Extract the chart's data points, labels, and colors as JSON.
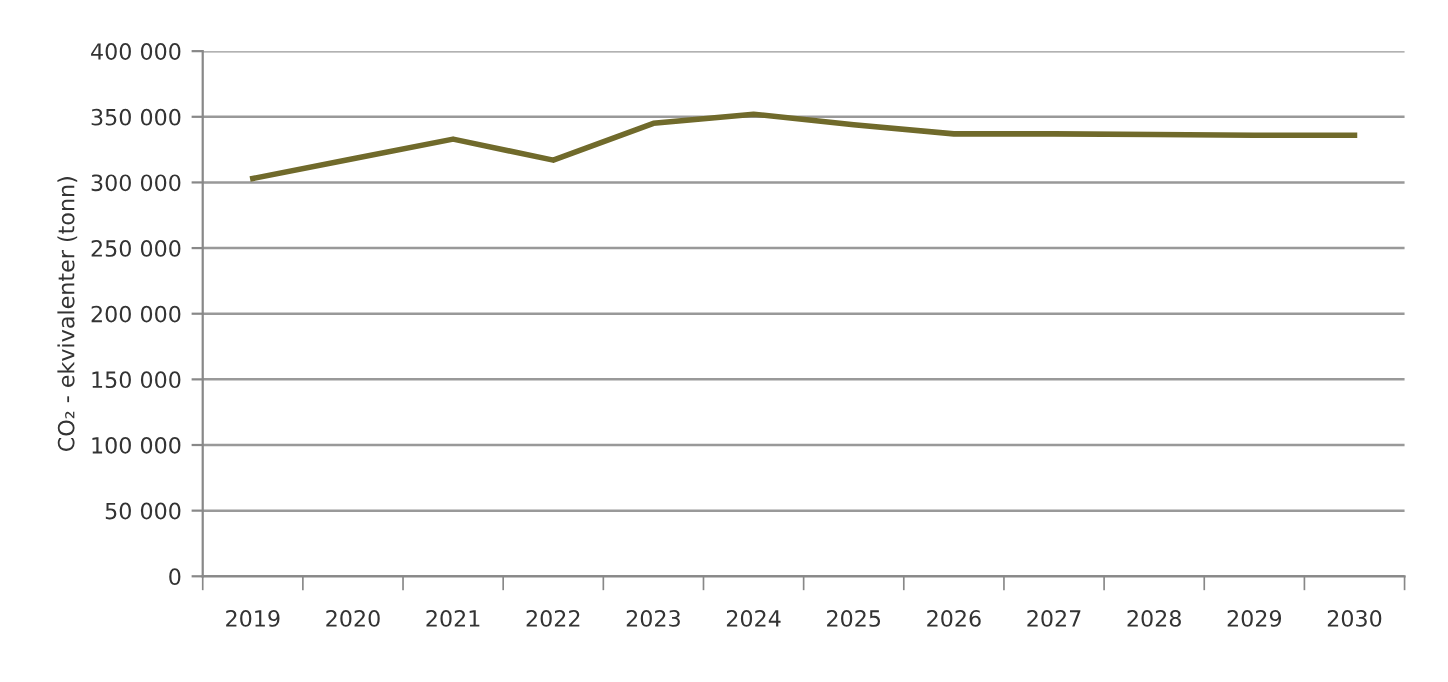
{
  "chart_data": {
    "type": "line",
    "ylabel": "CO₂ - ekvivalenter (tonn)",
    "categories": [
      "2019",
      "2020",
      "2021",
      "2022",
      "2023",
      "2024",
      "2025",
      "2026",
      "2027",
      "2028",
      "2029",
      "2030"
    ],
    "series": [
      {
        "color": "#706a2b",
        "values": [
          303000,
          318000,
          333000,
          317000,
          345000,
          352000,
          344000,
          337000,
          337000,
          336500,
          336000,
          336000
        ]
      }
    ],
    "ylim": [
      0,
      400000
    ],
    "yticks": [
      {
        "value": 0,
        "label": "0"
      },
      {
        "value": 50000,
        "label": "50 000"
      },
      {
        "value": 100000,
        "label": "100 000"
      },
      {
        "value": 150000,
        "label": "150 000"
      },
      {
        "value": 200000,
        "label": "200 000"
      },
      {
        "value": 250000,
        "label": "250 000"
      },
      {
        "value": 300000,
        "label": "300 000"
      },
      {
        "value": 350000,
        "label": "350 000"
      },
      {
        "value": 400000,
        "label": "400 000"
      }
    ],
    "grid": "y",
    "legend": false,
    "marker": "none",
    "line_style": "solid"
  }
}
